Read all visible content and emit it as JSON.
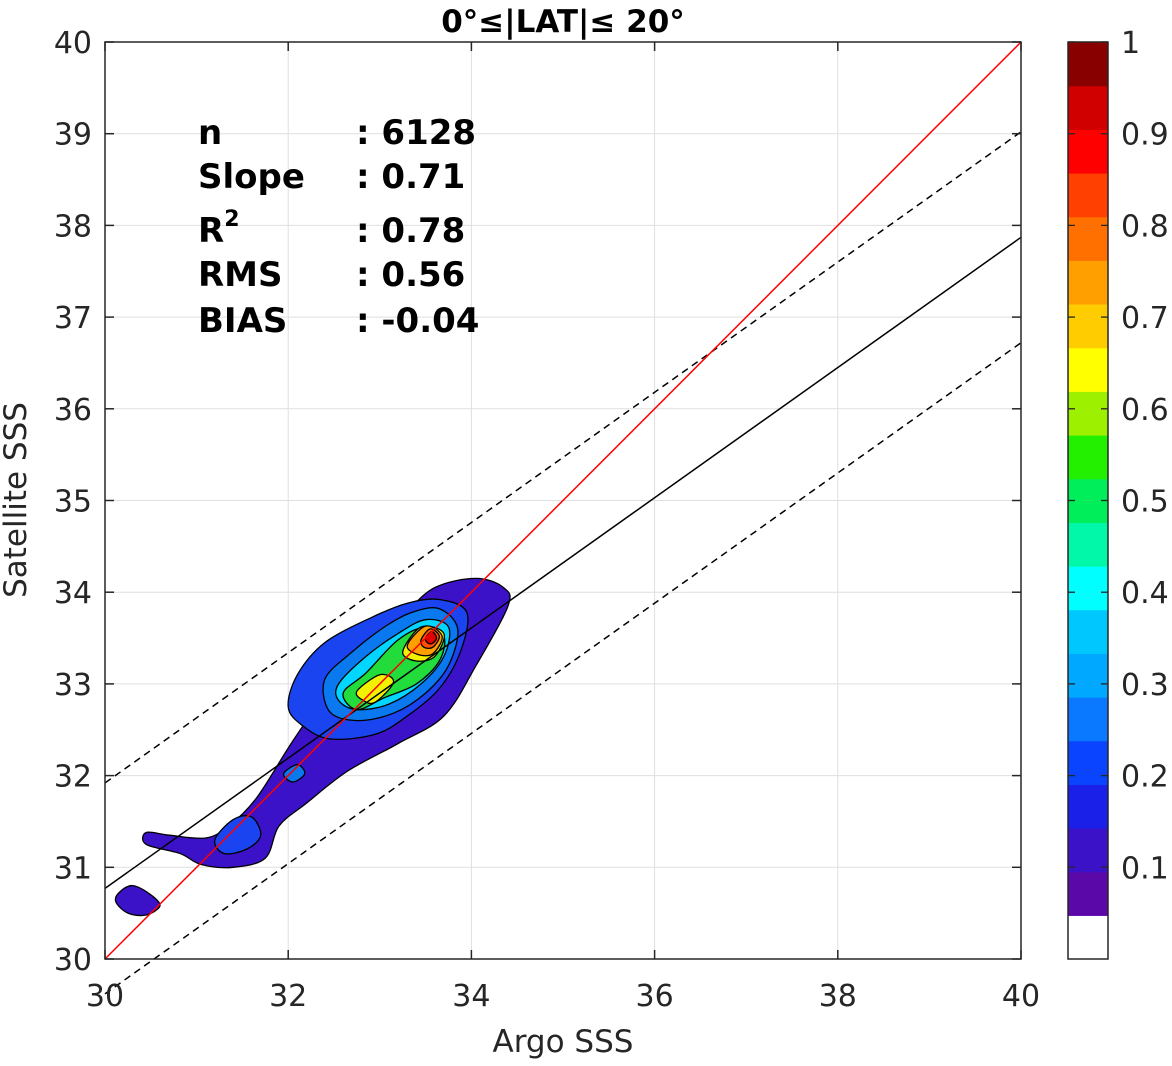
{
  "chart_data": {
    "type": "contour",
    "title": "0°≤|LAT|≤ 20°",
    "xlabel": "Argo SSS",
    "ylabel": "Satellite SSS",
    "xlim": [
      30,
      40
    ],
    "ylim": [
      30,
      40
    ],
    "xticks": [
      "30",
      "32",
      "34",
      "36",
      "38",
      "40"
    ],
    "yticks": [
      "30",
      "31",
      "32",
      "33",
      "34",
      "35",
      "36",
      "37",
      "38",
      "39",
      "40"
    ],
    "grid": true,
    "stats": [
      {
        "label": "n",
        "value": ": 6128"
      },
      {
        "label": "Slope",
        "value": ": 0.71"
      },
      {
        "label": "R",
        "sup": "2",
        "value": ": 0.78"
      },
      {
        "label": "RMS",
        "value": ": 0.56"
      },
      {
        "label": "BIAS",
        "value": ": -0.04"
      }
    ],
    "lines": {
      "one_to_one": {
        "color": "#ff0000",
        "points": [
          [
            30,
            30
          ],
          [
            40,
            40
          ]
        ]
      },
      "regression": {
        "color": "#000000",
        "points": [
          [
            30,
            30.77
          ],
          [
            40,
            37.87
          ]
        ]
      },
      "upper_bound": {
        "color": "#000000",
        "style": "dashed",
        "points": [
          [
            30,
            31.92
          ],
          [
            40,
            39.02
          ]
        ]
      },
      "lower_bound": {
        "color": "#000000",
        "style": "dashed",
        "points": [
          [
            30,
            29.62
          ],
          [
            40,
            36.72
          ]
        ]
      }
    },
    "contour_levels": [
      {
        "level": 0.05,
        "color": "#3c12c8",
        "polygons": [
          [
            [
              31.1,
              31.32
            ],
            [
              31.35,
              31.45
            ],
            [
              31.65,
              31.75
            ],
            [
              32.0,
              32.3
            ],
            [
              32.3,
              32.75
            ],
            [
              32.55,
              33.15
            ],
            [
              32.9,
              33.45
            ],
            [
              33.25,
              33.75
            ],
            [
              33.6,
              34.05
            ],
            [
              34.05,
              34.15
            ],
            [
              34.35,
              34.05
            ],
            [
              34.4,
              33.85
            ],
            [
              34.05,
              33.2
            ],
            [
              33.7,
              32.65
            ],
            [
              33.2,
              32.35
            ],
            [
              32.65,
              32.05
            ],
            [
              32.2,
              31.7
            ],
            [
              31.9,
              31.45
            ],
            [
              31.75,
              31.1
            ],
            [
              31.4,
              31.0
            ],
            [
              31.05,
              31.03
            ],
            [
              30.82,
              31.15
            ],
            [
              30.45,
              31.25
            ],
            [
              30.45,
              31.38
            ],
            [
              30.7,
              31.35
            ]
          ],
          [
            [
              30.15,
              30.72
            ],
            [
              30.3,
              30.8
            ],
            [
              30.5,
              30.7
            ],
            [
              30.6,
              30.58
            ],
            [
              30.45,
              30.48
            ],
            [
              30.25,
              30.5
            ],
            [
              30.12,
              30.62
            ]
          ]
        ]
      },
      {
        "level": 0.15,
        "color": "#1a44f0",
        "polygons": [
          [
            [
              31.2,
              31.3
            ],
            [
              31.4,
              31.52
            ],
            [
              31.6,
              31.55
            ],
            [
              31.7,
              31.35
            ],
            [
              31.55,
              31.2
            ],
            [
              31.3,
              31.15
            ]
          ],
          [
            [
              32.1,
              33.1
            ],
            [
              32.4,
              33.45
            ],
            [
              32.9,
              33.72
            ],
            [
              33.3,
              33.88
            ],
            [
              33.65,
              33.92
            ],
            [
              33.95,
              33.78
            ],
            [
              33.88,
              33.35
            ],
            [
              33.65,
              32.95
            ],
            [
              33.3,
              32.65
            ],
            [
              32.95,
              32.45
            ],
            [
              32.45,
              32.4
            ],
            [
              32.15,
              32.55
            ],
            [
              32.0,
              32.75
            ]
          ]
        ]
      },
      {
        "level": 0.3,
        "color": "#0a78ee",
        "polygons": [
          [
            [
              31.95,
              32.02
            ],
            [
              32.1,
              32.12
            ],
            [
              32.18,
              32.02
            ],
            [
              32.05,
              31.93
            ]
          ],
          [
            [
              32.4,
              33.05
            ],
            [
              32.7,
              33.35
            ],
            [
              33.05,
              33.62
            ],
            [
              33.35,
              33.78
            ],
            [
              33.65,
              33.82
            ],
            [
              33.85,
              33.6
            ],
            [
              33.75,
              33.2
            ],
            [
              33.5,
              32.9
            ],
            [
              33.15,
              32.68
            ],
            [
              32.75,
              32.6
            ],
            [
              32.45,
              32.7
            ]
          ]
        ]
      },
      {
        "level": 0.4,
        "color": "#00d6ff",
        "polygons": [
          [
            [
              32.55,
              33.0
            ],
            [
              32.85,
              33.3
            ],
            [
              33.2,
              33.55
            ],
            [
              33.5,
              33.7
            ],
            [
              33.75,
              33.62
            ],
            [
              33.7,
              33.3
            ],
            [
              33.45,
              33.0
            ],
            [
              33.1,
              32.78
            ],
            [
              32.75,
              32.72
            ],
            [
              32.55,
              32.82
            ]
          ]
        ]
      },
      {
        "level": 0.5,
        "color": "#22dc3c",
        "polygons": [
          [
            [
              32.6,
              32.9
            ],
            [
              32.85,
              33.12
            ],
            [
              33.2,
              33.48
            ],
            [
              33.5,
              33.62
            ],
            [
              33.7,
              33.52
            ],
            [
              33.65,
              33.25
            ],
            [
              33.4,
              33.0
            ],
            [
              33.05,
              32.85
            ],
            [
              32.75,
              32.72
            ]
          ]
        ]
      },
      {
        "level": 0.6,
        "color": "#f2f200",
        "polygons": [
          [
            [
              32.75,
              32.92
            ],
            [
              33.0,
              33.1
            ],
            [
              33.15,
              33.02
            ],
            [
              32.95,
              32.8
            ],
            [
              32.82,
              32.82
            ]
          ],
          [
            [
              33.25,
              33.35
            ],
            [
              33.45,
              33.62
            ],
            [
              33.7,
              33.55
            ],
            [
              33.6,
              33.3
            ],
            [
              33.4,
              33.25
            ]
          ]
        ]
      },
      {
        "level": 0.7,
        "color": "#ffa000",
        "polygons": [
          [
            [
              33.3,
              33.42
            ],
            [
              33.5,
              33.63
            ],
            [
              33.68,
              33.52
            ],
            [
              33.58,
              33.33
            ],
            [
              33.42,
              33.32
            ]
          ]
        ]
      },
      {
        "level": 0.8,
        "color": "#ff5000",
        "polygons": [
          [
            [
              33.45,
              33.48
            ],
            [
              33.55,
              33.6
            ],
            [
              33.65,
              33.52
            ],
            [
              33.58,
              33.4
            ],
            [
              33.48,
              33.4
            ]
          ]
        ]
      },
      {
        "level": 0.9,
        "color": "#e00000",
        "polygons": [
          [
            [
              33.5,
              33.5
            ],
            [
              33.57,
              33.57
            ],
            [
              33.62,
              33.5
            ],
            [
              33.57,
              33.44
            ],
            [
              33.52,
              33.45
            ]
          ]
        ]
      }
    ],
    "colorbar": {
      "range": [
        0,
        1
      ],
      "colors": [
        "#ffffff",
        "#5a08a8",
        "#3c12c8",
        "#1a20e8",
        "#0a44ff",
        "#0a78ff",
        "#00a8ff",
        "#00c8ff",
        "#00ffff",
        "#00f8a8",
        "#00ee5a",
        "#22f000",
        "#9cf000",
        "#ffff00",
        "#ffcc00",
        "#ffa000",
        "#ff7000",
        "#ff4000",
        "#ff0000",
        "#d00000",
        "#880000"
      ],
      "tick_values": [
        0.1,
        0.2,
        0.3,
        0.4,
        0.5,
        0.6,
        0.7,
        0.8,
        0.9,
        1.0
      ],
      "tick_labels": [
        "0.1",
        "0.2",
        "0.3",
        "0.4",
        "0.5",
        "0.6",
        "0.7",
        "0.8",
        "0.9",
        "1"
      ]
    }
  }
}
